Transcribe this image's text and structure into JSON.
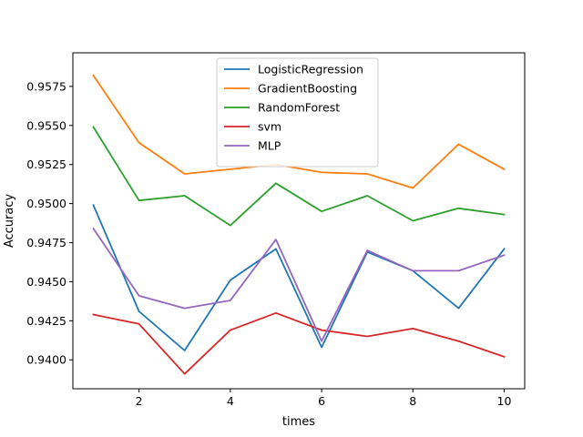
{
  "chart_data": {
    "type": "line",
    "title": "",
    "xlabel": "times",
    "ylabel": "Accuracy",
    "x": [
      1,
      2,
      3,
      4,
      5,
      6,
      7,
      8,
      9,
      10
    ],
    "xlim": [
      0.55,
      10.45
    ],
    "ylim": [
      0.93815,
      0.95965
    ],
    "xticks": [
      2,
      4,
      6,
      8,
      10
    ],
    "yticks": [
      0.94,
      0.9425,
      0.945,
      0.9475,
      0.95,
      0.9525,
      0.955,
      0.9575
    ],
    "ytick_labels": [
      "0.9400",
      "0.9425",
      "0.9450",
      "0.9475",
      "0.9500",
      "0.9525",
      "0.9550",
      "0.9575"
    ],
    "grid": false,
    "legend_position": "upper-center",
    "series": [
      {
        "name": "LogisticRegression",
        "color": "#1f77b4",
        "values": [
          0.9499,
          0.9431,
          0.9406,
          0.9451,
          0.9471,
          0.9408,
          0.9469,
          0.9457,
          0.9433,
          0.9471
        ]
      },
      {
        "name": "GradientBoosting",
        "color": "#ff7f0e",
        "values": [
          0.9582,
          0.9539,
          0.9519,
          0.9522,
          0.9525,
          0.952,
          0.9519,
          0.951,
          0.9538,
          0.9522
        ]
      },
      {
        "name": "RandomForest",
        "color": "#2ca02c",
        "values": [
          0.9549,
          0.9502,
          0.9505,
          0.9486,
          0.9513,
          0.9495,
          0.9505,
          0.9489,
          0.9497,
          0.9493
        ]
      },
      {
        "name": "svm",
        "color": "#d62728",
        "values": [
          0.9429,
          0.9423,
          0.9391,
          0.9419,
          0.943,
          0.9419,
          0.9415,
          0.942,
          0.9412,
          0.9402
        ]
      },
      {
        "name": "MLP",
        "color": "#9467bd",
        "values": [
          0.9484,
          0.9441,
          0.9433,
          0.9438,
          0.9477,
          0.9412,
          0.947,
          0.9457,
          0.9457,
          0.9467
        ]
      }
    ]
  }
}
